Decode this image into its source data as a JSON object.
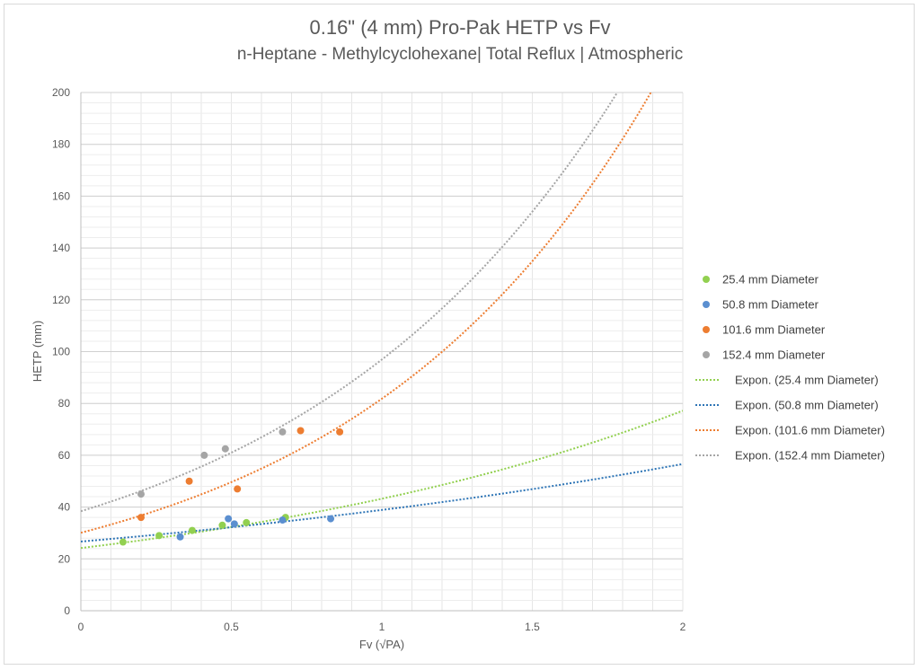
{
  "chart_data": {
    "type": "scatter",
    "title": "0.16\" (4 mm) Pro-Pak HETP vs Fv",
    "subtitle": "n-Heptane - Methylcyclohexane| Total Reflux | Atmospheric",
    "xlabel": "Fv (√PA)",
    "ylabel": "HETP (mm)",
    "xlim": [
      0,
      2
    ],
    "ylim": [
      0,
      200
    ],
    "xticks": [
      0,
      0.5,
      1,
      1.5,
      2
    ],
    "xtick_labels": [
      "0",
      "0.5",
      "1",
      "1.5",
      "2"
    ],
    "yticks": [
      0,
      20,
      40,
      60,
      80,
      100,
      120,
      140,
      160,
      180,
      200
    ],
    "grid": true,
    "legend_position": "right",
    "series": [
      {
        "name": "25.4 mm Diameter",
        "color": "#92d050",
        "x": [
          0.14,
          0.26,
          0.37,
          0.47,
          0.55,
          0.68
        ],
        "y": [
          26.5,
          29,
          31,
          33,
          34,
          36
        ]
      },
      {
        "name": "50.8 mm Diameter",
        "color": "#5b8fd0",
        "x": [
          0.33,
          0.49,
          0.51,
          0.67,
          0.83
        ],
        "y": [
          28.5,
          35.5,
          33.5,
          35,
          35.5
        ]
      },
      {
        "name": "101.6 mm Diameter",
        "color": "#ed7d31",
        "x": [
          0.2,
          0.36,
          0.52,
          0.73,
          0.86
        ],
        "y": [
          36,
          50,
          47,
          69.5,
          69
        ]
      },
      {
        "name": "152.4 mm Diameter",
        "color": "#a5a5a5",
        "x": [
          0.2,
          0.41,
          0.48,
          0.67
        ],
        "y": [
          45,
          60,
          62.5,
          69
        ]
      }
    ],
    "trendlines": [
      {
        "name": "Expon. (25.4 mm Diameter)",
        "color": "#92d050",
        "type": "exponential",
        "a": 24.2,
        "b": 0.58
      },
      {
        "name": "Expon. (50.8 mm Diameter)",
        "color": "#2e75b6",
        "type": "exponential",
        "a": 26.7,
        "b": 0.376
      },
      {
        "name": "Expon. (101.6 mm Diameter)",
        "color": "#ed7d31",
        "type": "exponential",
        "a": 30.1,
        "b": 1.0
      },
      {
        "name": "Expon. (152.4 mm Diameter)",
        "color": "#a5a5a5",
        "type": "exponential",
        "a": 38.4,
        "b": 0.926
      }
    ]
  }
}
